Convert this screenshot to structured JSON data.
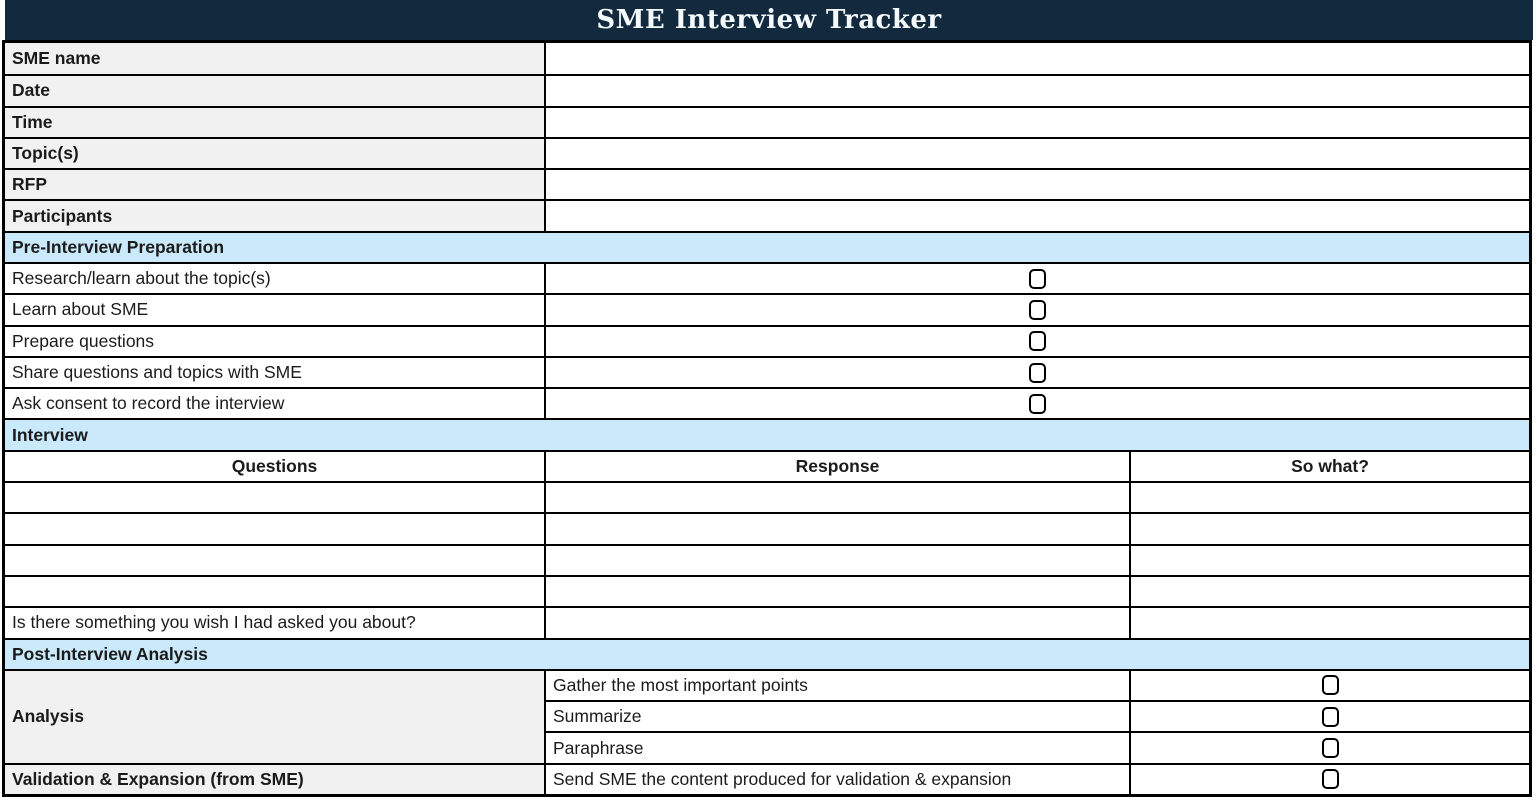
{
  "title": "SME Interview Tracker",
  "colors": {
    "title_bg": "#12293e",
    "title_text": "#f4f9fc",
    "section_header_bg": "#cae9fa",
    "label_cell_bg": "#f1f1f1",
    "grid_border": "#000000"
  },
  "info_fields": [
    {
      "label": "SME name",
      "value": ""
    },
    {
      "label": "Date",
      "value": ""
    },
    {
      "label": "Time",
      "value": ""
    },
    {
      "label": "Topic(s)",
      "value": ""
    },
    {
      "label": "RFP",
      "value": ""
    },
    {
      "label": "Participants",
      "value": ""
    }
  ],
  "pre_interview": {
    "header": "Pre-Interview Preparation",
    "tasks": [
      {
        "label": "Research/learn about the topic(s)",
        "checked": false
      },
      {
        "label": "Learn about SME",
        "checked": false
      },
      {
        "label": "Prepare questions",
        "checked": false
      },
      {
        "label": "Share questions and topics with SME",
        "checked": false
      },
      {
        "label": "Ask consent to record the interview",
        "checked": false
      }
    ]
  },
  "interview": {
    "header": "Interview",
    "columns": [
      "Questions",
      "Response",
      "So what?"
    ],
    "rows": [
      {
        "question": "",
        "response": "",
        "so_what": ""
      },
      {
        "question": "",
        "response": "",
        "so_what": ""
      },
      {
        "question": "",
        "response": "",
        "so_what": ""
      },
      {
        "question": "",
        "response": "",
        "so_what": ""
      }
    ],
    "final_question": {
      "label": "Is there something you wish I had asked you about?",
      "response": "",
      "so_what": ""
    }
  },
  "post_interview": {
    "header": "Post-Interview Analysis",
    "analysis": {
      "label": "Analysis",
      "tasks": [
        {
          "label": "Gather the most important points",
          "checked": false
        },
        {
          "label": "Summarize",
          "checked": false
        },
        {
          "label": "Paraphrase",
          "checked": false
        }
      ]
    },
    "validation": {
      "label": "Validation & Expansion (from SME)",
      "task": {
        "label": "Send SME the content produced for validation & expansion",
        "checked": false
      }
    }
  }
}
